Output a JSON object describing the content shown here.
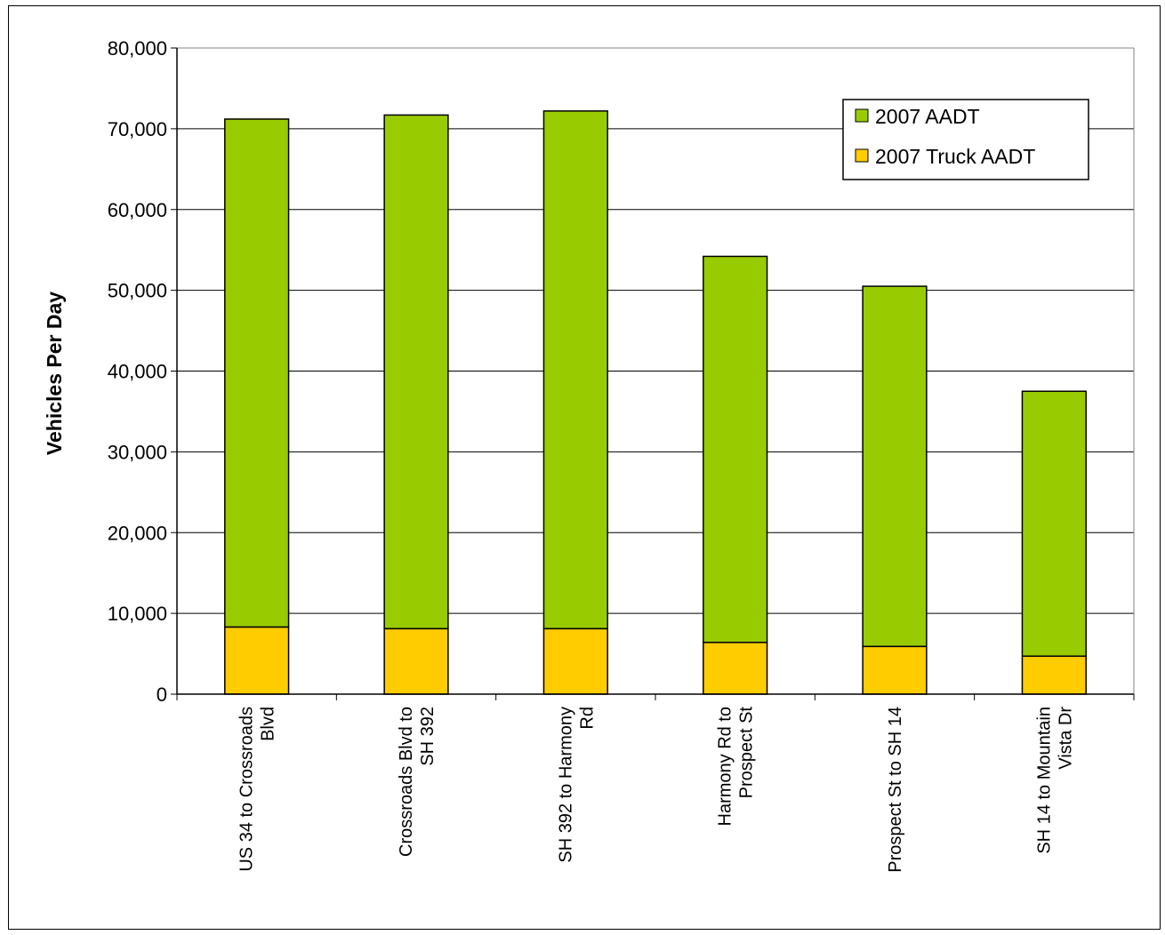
{
  "chart_data": {
    "type": "bar",
    "stacked": true,
    "title": "",
    "xlabel": "",
    "ylabel": "Vehicles Per Day",
    "ylim": [
      0,
      80000
    ],
    "yticks": [
      "0",
      "10,000",
      "20,000",
      "30,000",
      "40,000",
      "50,000",
      "60,000",
      "70,000",
      "80,000"
    ],
    "ytick_values": [
      0,
      10000,
      20000,
      30000,
      40000,
      50000,
      60000,
      70000,
      80000
    ],
    "grid": true,
    "legend_position": "top-right",
    "categories": [
      [
        "US 34 to Crossroads",
        "Blvd"
      ],
      [
        "Crossroads Blvd to",
        "SH 392"
      ],
      [
        "SH 392 to Harmony",
        "Rd"
      ],
      [
        "Harmony Rd to",
        "Prospect St"
      ],
      [
        "Prospect St to SH 14"
      ],
      [
        "SH 14 to Mountain",
        "Vista Dr"
      ]
    ],
    "series": [
      {
        "name": "2007 AADT",
        "color": "#99cc00",
        "values": [
          71200,
          71700,
          72200,
          54200,
          50500,
          37500
        ]
      },
      {
        "name": "2007 Truck AADT",
        "color": "#ffcc00",
        "values": [
          8300,
          8100,
          8100,
          6400,
          5900,
          4700
        ]
      }
    ]
  }
}
